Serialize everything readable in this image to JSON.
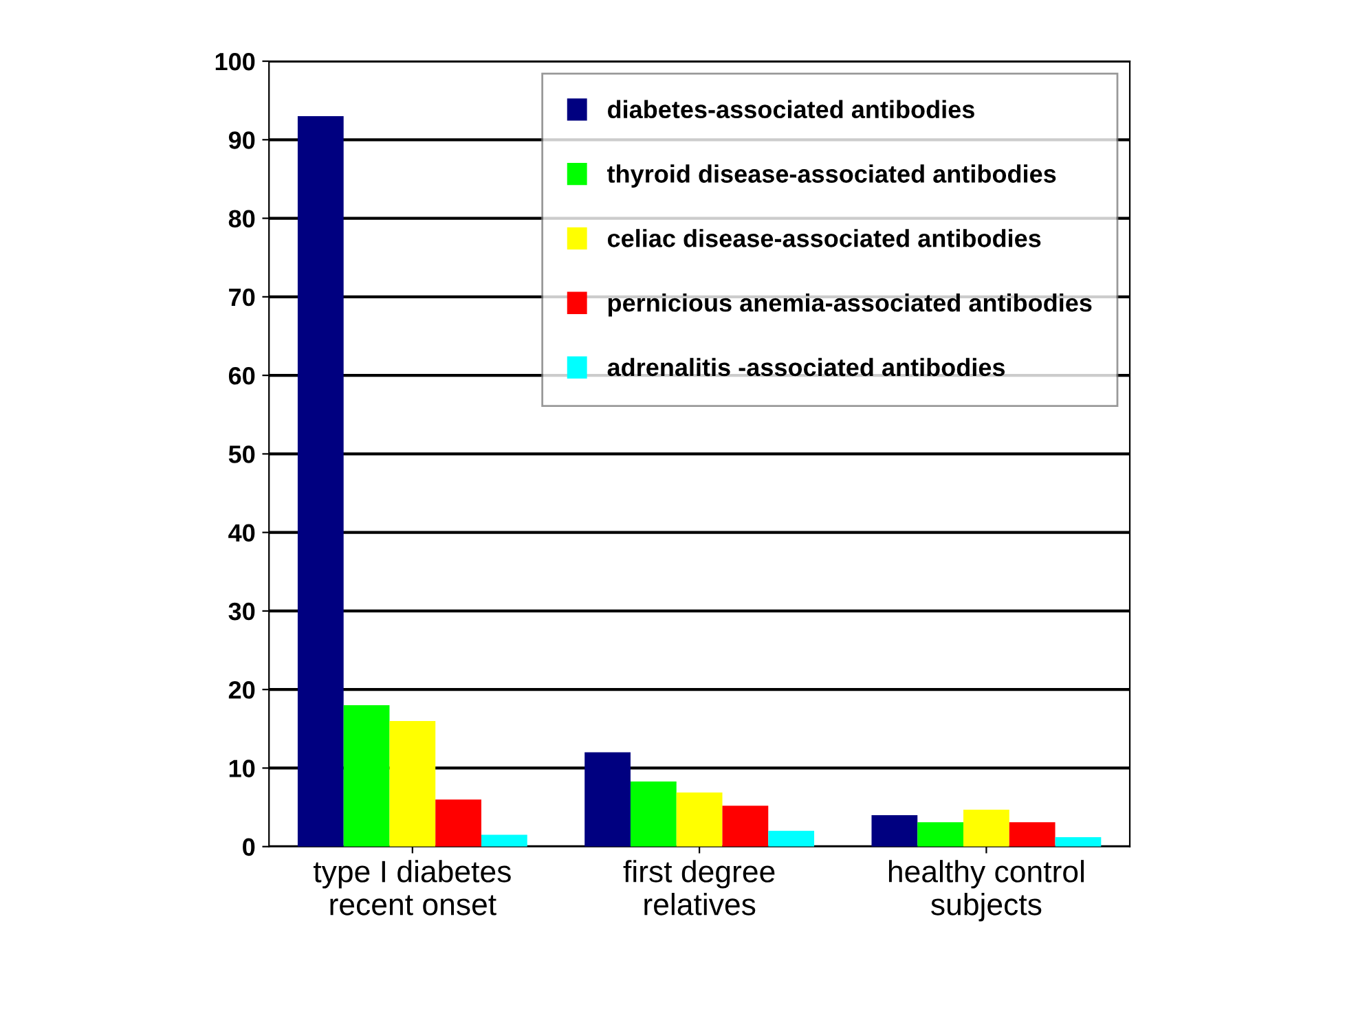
{
  "chart_data": {
    "type": "bar",
    "categories": [
      "type I diabetes\nrecent onset",
      "first degree\nrelatives",
      "healthy control\nsubjects"
    ],
    "series": [
      {
        "name": "diabetes-associated antibodies",
        "color": "#000080",
        "values": [
          93,
          12,
          4
        ]
      },
      {
        "name": "thyroid disease-associated antibodies",
        "color": "#00ff00",
        "values": [
          18,
          8.3,
          3.1
        ]
      },
      {
        "name": "celiac disease-associated antibodies",
        "color": "#ffff00",
        "values": [
          16,
          6.9,
          4.7
        ]
      },
      {
        "name": "pernicious anemia-associated antibodies",
        "color": "#ff0000",
        "values": [
          6,
          5.2,
          3.1
        ]
      },
      {
        "name": "adrenalitis -associated antibodies",
        "color": "#00ffff",
        "values": [
          1.5,
          2,
          1.2
        ]
      }
    ],
    "ylim": [
      0,
      100
    ],
    "yticks": [
      0,
      10,
      20,
      30,
      40,
      50,
      60,
      70,
      80,
      90,
      100
    ],
    "grid": "y",
    "legend": "top right"
  }
}
